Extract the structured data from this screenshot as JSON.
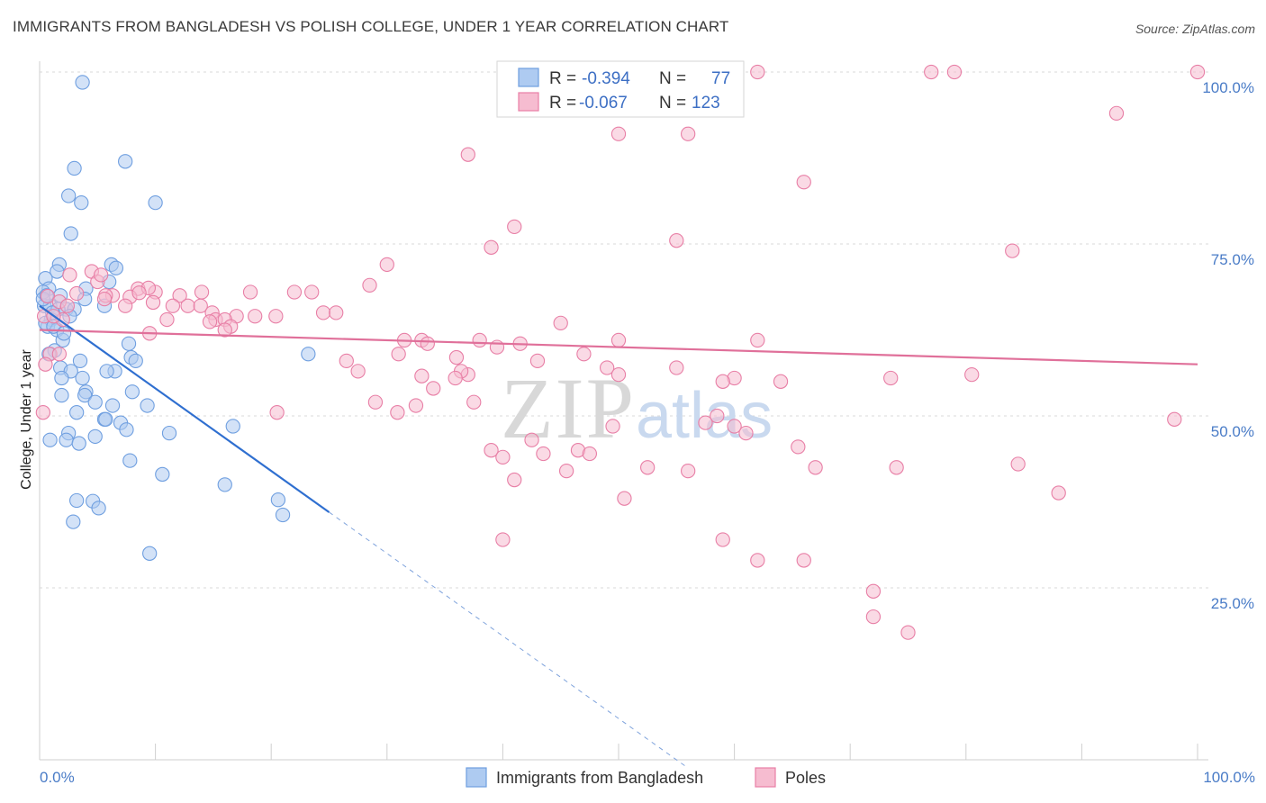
{
  "title": "IMMIGRANTS FROM BANGLADESH VS POLISH COLLEGE, UNDER 1 YEAR CORRELATION CHART",
  "source": "Source: ZipAtlas.com",
  "watermark": {
    "zip": "ZIP",
    "atlas": "atlas"
  },
  "legend_box": {
    "rows": [
      {
        "r_label": "R =",
        "r_value": "-0.394",
        "n_label": "N =",
        "n_value": "77",
        "color": "#8db5ec"
      },
      {
        "r_label": "R =",
        "r_value": "-0.067",
        "n_label": "N =",
        "n_value": "123",
        "color": "#f3a8c2"
      }
    ]
  },
  "chart_data": {
    "type": "scatter",
    "title": "IMMIGRANTS FROM BANGLADESH VS POLISH COLLEGE, UNDER 1 YEAR CORRELATION CHART",
    "xlabel": "",
    "ylabel": "College, Under 1 year",
    "xlim": [
      0,
      100
    ],
    "ylim": [
      0,
      100
    ],
    "x_tick_labels": [
      "0.0%",
      "100.0%"
    ],
    "y_tick_labels": [
      "25.0%",
      "50.0%",
      "75.0%",
      "100.0%"
    ],
    "y_ticks": [
      25,
      50,
      75,
      100
    ],
    "grid": true,
    "series": [
      {
        "name": "Immigrants from Bangladesh",
        "color": "#6f9fe0",
        "fill": "#aecbf1",
        "trend": {
          "x0": 0,
          "y0": 66,
          "x1": 25,
          "y1": 36,
          "dash_to_x": 56
        },
        "points": [
          [
            3.7,
            98.5
          ],
          [
            3.0,
            86
          ],
          [
            7.4,
            87
          ],
          [
            2.5,
            82
          ],
          [
            3.6,
            81
          ],
          [
            10,
            81
          ],
          [
            2.7,
            76.5
          ],
          [
            1.7,
            72
          ],
          [
            6.2,
            72
          ],
          [
            6.6,
            71.5
          ],
          [
            1.5,
            71
          ],
          [
            0.5,
            70
          ],
          [
            6,
            69.5
          ],
          [
            0.8,
            68.5
          ],
          [
            0.3,
            68
          ],
          [
            1.8,
            67.5
          ],
          [
            4,
            68.5
          ],
          [
            3.9,
            67
          ],
          [
            0.4,
            66
          ],
          [
            0.9,
            66
          ],
          [
            2.3,
            65.5
          ],
          [
            3,
            65.5
          ],
          [
            5.6,
            66
          ],
          [
            1.6,
            65.5
          ],
          [
            1,
            64
          ],
          [
            0.7,
            63
          ],
          [
            1.5,
            62.5
          ],
          [
            2,
            61
          ],
          [
            7.7,
            60.5
          ],
          [
            1.3,
            59.5
          ],
          [
            7.9,
            58.5
          ],
          [
            0.8,
            59
          ],
          [
            8.3,
            58
          ],
          [
            3.5,
            58
          ],
          [
            1.8,
            57
          ],
          [
            6.5,
            56.5
          ],
          [
            2.7,
            56.5
          ],
          [
            5.8,
            56.5
          ],
          [
            1.9,
            55.5
          ],
          [
            3.7,
            55.5
          ],
          [
            8,
            53.5
          ],
          [
            4,
            53.5
          ],
          [
            1.9,
            53
          ],
          [
            3.9,
            53
          ],
          [
            4.8,
            52
          ],
          [
            6.3,
            51.5
          ],
          [
            9.3,
            51.5
          ],
          [
            3.2,
            50.5
          ],
          [
            5.6,
            49.5
          ],
          [
            5.7,
            49.5
          ],
          [
            7,
            49
          ],
          [
            16.7,
            48.5
          ],
          [
            2.5,
            47.5
          ],
          [
            7.5,
            48
          ],
          [
            11.2,
            47.5
          ],
          [
            4.8,
            47
          ],
          [
            2.3,
            46.5
          ],
          [
            3.4,
            46
          ],
          [
            0.9,
            46.5
          ],
          [
            7.8,
            43.5
          ],
          [
            10.6,
            41.5
          ],
          [
            16,
            40
          ],
          [
            20.6,
            37.8
          ],
          [
            3.2,
            37.7
          ],
          [
            4.6,
            37.6
          ],
          [
            5.1,
            36.6
          ],
          [
            21,
            35.6
          ],
          [
            2.9,
            34.6
          ],
          [
            9.5,
            30
          ],
          [
            23.2,
            59
          ],
          [
            0.5,
            63.5
          ],
          [
            1.2,
            63
          ],
          [
            2.1,
            62
          ],
          [
            0.3,
            67
          ],
          [
            0.6,
            67.5
          ],
          [
            1.1,
            65
          ],
          [
            2.6,
            64.5
          ]
        ]
      },
      {
        "name": "Poles",
        "color": "#e87fa6",
        "fill": "#f6bcd0",
        "trend": {
          "x0": 0,
          "y0": 62.5,
          "x1": 100,
          "y1": 57.5
        },
        "points": [
          [
            47,
            100
          ],
          [
            62,
            100
          ],
          [
            77,
            100
          ],
          [
            79,
            100
          ],
          [
            100,
            100
          ],
          [
            56,
            91
          ],
          [
            50,
            91
          ],
          [
            93,
            94
          ],
          [
            37,
            88
          ],
          [
            66,
            84
          ],
          [
            41,
            77.5
          ],
          [
            39,
            74.5
          ],
          [
            55,
            75.5
          ],
          [
            84,
            74
          ],
          [
            30,
            72
          ],
          [
            4.5,
            71
          ],
          [
            2.6,
            70.5
          ],
          [
            28.5,
            69
          ],
          [
            5,
            69.5
          ],
          [
            14,
            68
          ],
          [
            22,
            68
          ],
          [
            18.2,
            68
          ],
          [
            23.5,
            68
          ],
          [
            8.5,
            68.5
          ],
          [
            10,
            68
          ],
          [
            12.1,
            67.5
          ],
          [
            6.3,
            67.5
          ],
          [
            5.7,
            67.5
          ],
          [
            0.7,
            67.4
          ],
          [
            7.8,
            67.3
          ],
          [
            1.7,
            66.6
          ],
          [
            9.8,
            66.5
          ],
          [
            11.5,
            66
          ],
          [
            12.8,
            66
          ],
          [
            13.9,
            66
          ],
          [
            14.9,
            65
          ],
          [
            7.4,
            66
          ],
          [
            5.6,
            67
          ],
          [
            9.4,
            68.6
          ],
          [
            8.6,
            67.9
          ],
          [
            24.5,
            65
          ],
          [
            17,
            64.5
          ],
          [
            15.2,
            64
          ],
          [
            11,
            64
          ],
          [
            16,
            64
          ],
          [
            20.4,
            64.5
          ],
          [
            18.6,
            64.5
          ],
          [
            25.6,
            65
          ],
          [
            2,
            64
          ],
          [
            14.7,
            63.7
          ],
          [
            16.5,
            63
          ],
          [
            16,
            62.5
          ],
          [
            62,
            61
          ],
          [
            45,
            63.5
          ],
          [
            33,
            61
          ],
          [
            31.5,
            61
          ],
          [
            33.5,
            60.5
          ],
          [
            31,
            59
          ],
          [
            26.5,
            58
          ],
          [
            47,
            59
          ],
          [
            38,
            61
          ],
          [
            39.5,
            60
          ],
          [
            36,
            58.5
          ],
          [
            43,
            58
          ],
          [
            50,
            61
          ],
          [
            41.5,
            60.5
          ],
          [
            55,
            57
          ],
          [
            49,
            57
          ],
          [
            50,
            56
          ],
          [
            60,
            55.5
          ],
          [
            59,
            55
          ],
          [
            64,
            55
          ],
          [
            73.5,
            55.5
          ],
          [
            37,
            56
          ],
          [
            27.5,
            56.5
          ],
          [
            36.4,
            56.5
          ],
          [
            33,
            55.8
          ],
          [
            35.9,
            55.5
          ],
          [
            34,
            54
          ],
          [
            32.5,
            51.5
          ],
          [
            29,
            52
          ],
          [
            20.5,
            50.5
          ],
          [
            30.9,
            50.5
          ],
          [
            37.5,
            52
          ],
          [
            39,
            45
          ],
          [
            40,
            44
          ],
          [
            42.5,
            46.5
          ],
          [
            43.5,
            44.5
          ],
          [
            46.5,
            45
          ],
          [
            47.5,
            44.5
          ],
          [
            49.5,
            48.5
          ],
          [
            41,
            40.7
          ],
          [
            45.5,
            42
          ],
          [
            60,
            48.5
          ],
          [
            61,
            47.5
          ],
          [
            58.5,
            50
          ],
          [
            57.5,
            49
          ],
          [
            65.5,
            45.5
          ],
          [
            52.5,
            42.5
          ],
          [
            50.5,
            38
          ],
          [
            56,
            42
          ],
          [
            67,
            42.5
          ],
          [
            74,
            42.5
          ],
          [
            80.5,
            56
          ],
          [
            84.5,
            43
          ],
          [
            88,
            38.8
          ],
          [
            98,
            49.5
          ],
          [
            40,
            32
          ],
          [
            59,
            32
          ],
          [
            62,
            29
          ],
          [
            66,
            29
          ],
          [
            72,
            24.5
          ],
          [
            72,
            20.8
          ],
          [
            75,
            18.5
          ],
          [
            0.3,
            50.5
          ],
          [
            0.9,
            59
          ],
          [
            0.5,
            57.5
          ],
          [
            0.4,
            64.5
          ],
          [
            2.4,
            66
          ],
          [
            5.3,
            70.5
          ],
          [
            3.2,
            67.8
          ],
          [
            1.2,
            64.5
          ],
          [
            9.5,
            62
          ],
          [
            1.7,
            59
          ]
        ]
      }
    ]
  },
  "bottom_legend": {
    "items": [
      {
        "label": "Immigrants from Bangladesh",
        "color": "#aecbf1",
        "border": "#6f9fe0"
      },
      {
        "label": "Poles",
        "color": "#f6bcd0",
        "border": "#e87fa6"
      }
    ]
  }
}
